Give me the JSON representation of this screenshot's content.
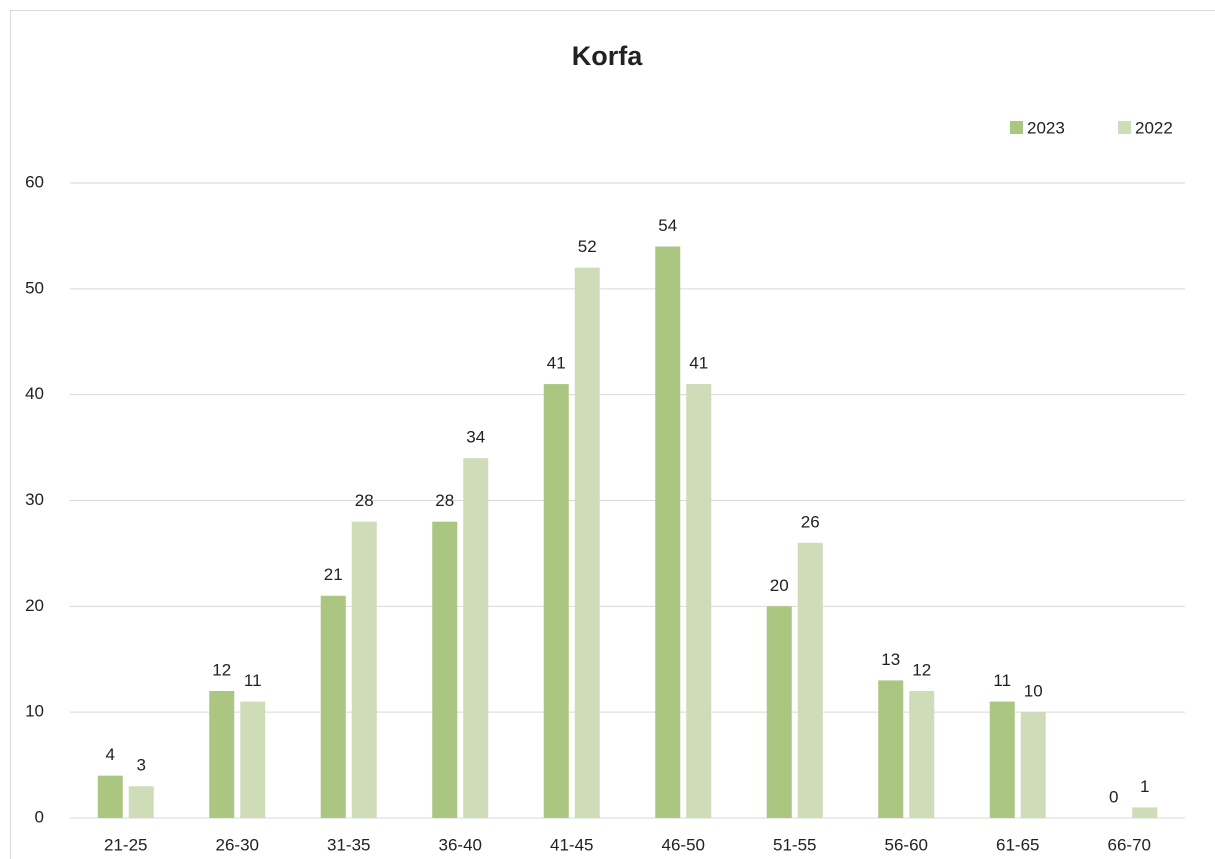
{
  "chart_data": {
    "type": "bar",
    "title": "Korfa",
    "categories": [
      "21-25",
      "26-30",
      "31-35",
      "36-40",
      "41-45",
      "46-50",
      "51-55",
      "56-60",
      "61-65",
      "66-70"
    ],
    "series": [
      {
        "name": "2023",
        "color": "#abc681",
        "values": [
          4,
          12,
          21,
          28,
          41,
          54,
          20,
          13,
          11,
          0
        ]
      },
      {
        "name": "2022",
        "color": "#cfdcb8",
        "values": [
          3,
          11,
          28,
          34,
          52,
          41,
          26,
          12,
          10,
          1
        ]
      }
    ],
    "ylim": [
      0,
      60
    ],
    "yticks": [
      0,
      10,
      20,
      30,
      40,
      50,
      60
    ],
    "grid": true,
    "legend": "top-right"
  }
}
